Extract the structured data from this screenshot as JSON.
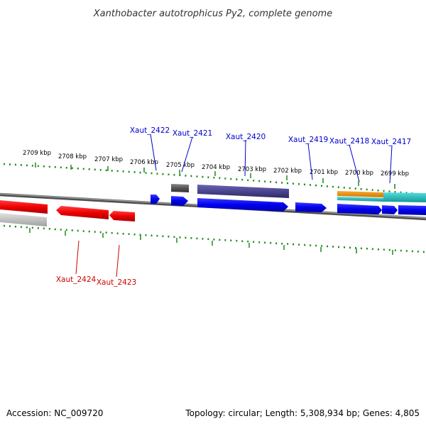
{
  "header": {
    "title": "Xanthobacter autotrophicus Py2, complete genome"
  },
  "footer": {
    "accession": "Accession: NC_009720",
    "summary": "Topology: circular; Length: 5,308,934 bp; Genes: 4,805"
  },
  "scale": {
    "tick_labels": [
      "2709 kbp",
      "2708 kbp",
      "2707 kbp",
      "2706 kbp",
      "2705 kbp",
      "2704 kbp",
      "2703 kbp",
      "2702 kbp",
      "2701 kbp",
      "2700 kbp",
      "2699 kbp"
    ]
  },
  "genes": {
    "forward": [
      {
        "name": "Xaut_2422",
        "strand": "+"
      },
      {
        "name": "Xaut_2421",
        "strand": "+"
      },
      {
        "name": "Xaut_2420",
        "strand": "+"
      },
      {
        "name": "Xaut_2419",
        "strand": "+"
      },
      {
        "name": "Xaut_2418",
        "strand": "+"
      },
      {
        "name": "Xaut_2417",
        "strand": "+"
      }
    ],
    "reverse": [
      {
        "name": "Xaut_2424",
        "strand": "-"
      },
      {
        "name": "Xaut_2423",
        "strand": "-"
      }
    ]
  },
  "colors": {
    "forward_cds": "#0000ee",
    "reverse_cds": "#ee0000",
    "forward_label": "#0000cc",
    "reverse_label": "#cc0000",
    "tick": "#1a8a1a",
    "backbone": "#707070",
    "gene_product_purple": "#4a4590",
    "gene_product_orange": "#ee8800",
    "gene_product_teal": "#22bbbb",
    "gene_product_grey": "#555555"
  }
}
